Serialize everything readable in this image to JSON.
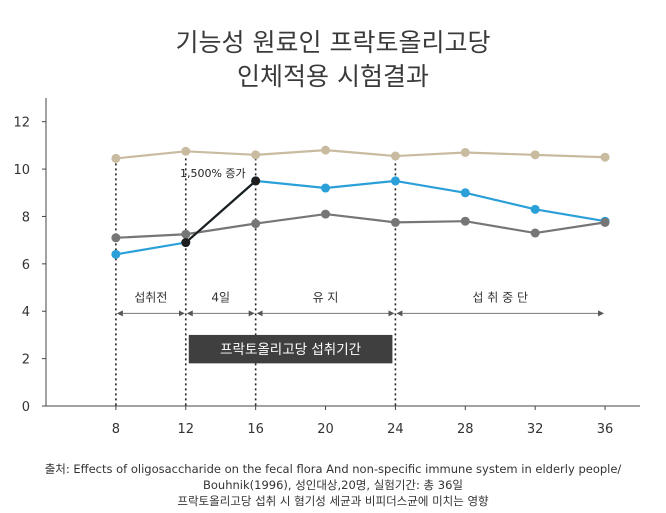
{
  "title_line1": "기능성 원료인 프락토올리고당",
  "title_line2": "인체적용 시험결과",
  "source_line1": "출처: Effects of oligosaccharide on the fecal flora And non-specific immune system in elderly people/",
  "source_line2": "Bouhnik(1996), 성인대상,20명, 실험기간: 총 36일",
  "source_line3": "프락토올리고당 섭취 시 혐기성 세균과 비피더스균에 미치는 영향",
  "colors": {
    "blue": "#2a9fd8",
    "gray": "#767676",
    "tan": "#c9bba0",
    "black": "#1e1e1e",
    "bar": "#3f3f3f"
  },
  "chart_data": {
    "type": "line",
    "title": "기능성 원료인 프락토올리고당 인체적용 시험결과",
    "xlabel": "",
    "ylabel": "",
    "x": [
      8,
      12,
      16,
      20,
      24,
      28,
      32,
      36
    ],
    "xlim": [
      4,
      38
    ],
    "ylim": [
      0,
      13
    ],
    "yticks": [
      0,
      2,
      4,
      6,
      8,
      10,
      12
    ],
    "grid": false,
    "series": [
      {
        "color_key": "tan",
        "values": [
          10.45,
          10.75,
          10.6,
          10.8,
          10.55,
          10.7,
          10.6,
          10.5
        ]
      },
      {
        "color_key": "blue",
        "values": [
          6.4,
          6.9,
          9.5,
          9.2,
          9.5,
          9.0,
          8.3,
          7.8
        ]
      },
      {
        "color_key": "gray",
        "values": [
          7.1,
          7.25,
          7.7,
          8.1,
          7.75,
          7.8,
          7.3,
          7.75
        ]
      }
    ],
    "highlight": {
      "color_key": "black",
      "x": [
        12,
        16
      ],
      "y": [
        6.9,
        9.5
      ],
      "label": "1,500% 증가"
    },
    "segments": [
      {
        "label": "섭취전",
        "x0": 8,
        "x1": 12
      },
      {
        "label": "4일",
        "x0": 12,
        "x1": 16
      },
      {
        "label": "유 지",
        "x0": 16,
        "x1": 24
      },
      {
        "label": "섭 취 중 단",
        "x0": 24,
        "x1": 36
      }
    ],
    "segment_y": 4.5,
    "dividers": [
      8,
      12,
      16,
      24
    ],
    "period_bar": {
      "label": "프락토올리고당 섭취기간",
      "x0": 12,
      "x1": 24,
      "y_top": 3.0,
      "y_bottom": 1.8
    }
  }
}
